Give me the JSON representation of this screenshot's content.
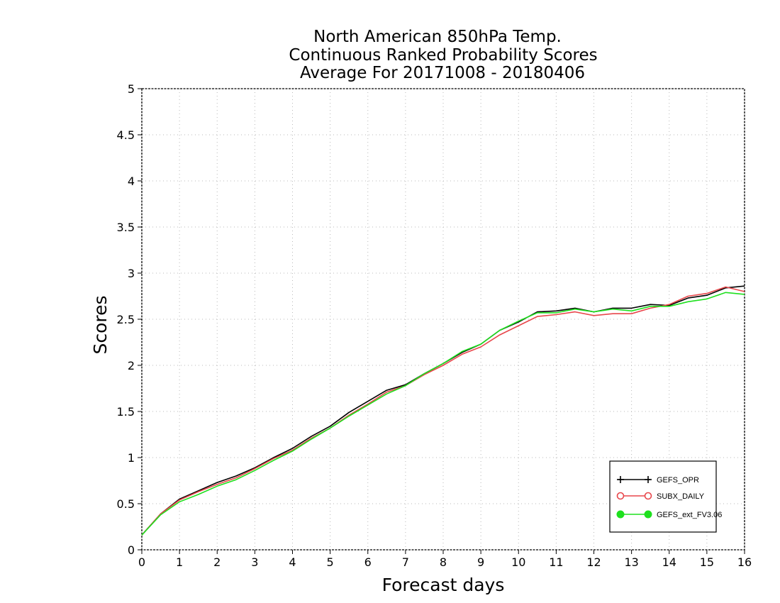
{
  "chart_data": {
    "type": "line",
    "title": [
      "North American 850hPa Temp.",
      "Continuous Ranked Probability Scores",
      "Average For 20171008 - 20180406"
    ],
    "xlabel": "Forecast days",
    "ylabel": "Scores",
    "xlim": [
      0,
      16
    ],
    "ylim": [
      0,
      5
    ],
    "x_ticks": [
      "0",
      "1",
      "2",
      "3",
      "4",
      "5",
      "6",
      "7",
      "8",
      "9",
      "10",
      "11",
      "12",
      "13",
      "14",
      "15",
      "16"
    ],
    "y_ticks": [
      "0",
      "0.5",
      "1",
      "1.5",
      "2",
      "2.5",
      "3",
      "3.5",
      "4",
      "4.5",
      "5"
    ],
    "grid": true,
    "legend_position": "bottom-right",
    "x": [
      0,
      0.5,
      1,
      1.5,
      2,
      2.5,
      3,
      3.5,
      4,
      4.5,
      5,
      5.5,
      6,
      6.5,
      7,
      7.5,
      8,
      8.5,
      9,
      9.5,
      10,
      10.5,
      11,
      11.5,
      12,
      12.5,
      13,
      13.5,
      14,
      14.5,
      15,
      15.5,
      16
    ],
    "series": [
      {
        "name": "GEFS_OPR",
        "color": "#000000",
        "marker": "plus",
        "values": [
          0.16,
          0.39,
          0.55,
          0.64,
          0.73,
          0.8,
          0.89,
          1.0,
          1.1,
          1.23,
          1.34,
          1.49,
          1.61,
          1.73,
          1.79,
          1.91,
          2.02,
          2.14,
          2.23,
          2.38,
          2.47,
          2.58,
          2.59,
          2.62,
          2.58,
          2.62,
          2.62,
          2.66,
          2.65,
          2.73,
          2.76,
          2.84,
          2.86
        ]
      },
      {
        "name": "SUBX_DAILY",
        "color": "#e8474b",
        "marker": "open-circle",
        "values": [
          0.16,
          0.39,
          0.54,
          0.63,
          0.71,
          0.78,
          0.88,
          0.99,
          1.08,
          1.21,
          1.32,
          1.46,
          1.58,
          1.71,
          1.78,
          1.9,
          2.0,
          2.12,
          2.2,
          2.33,
          2.43,
          2.53,
          2.55,
          2.58,
          2.54,
          2.56,
          2.56,
          2.62,
          2.66,
          2.75,
          2.78,
          2.85,
          2.8
        ]
      },
      {
        "name": "GEFS_ext_FV3.06",
        "color": "#1ee01e",
        "marker": "filled-circle",
        "values": [
          0.16,
          0.38,
          0.52,
          0.6,
          0.69,
          0.76,
          0.86,
          0.97,
          1.07,
          1.2,
          1.32,
          1.45,
          1.57,
          1.69,
          1.78,
          1.91,
          2.02,
          2.15,
          2.23,
          2.38,
          2.48,
          2.57,
          2.57,
          2.61,
          2.58,
          2.61,
          2.59,
          2.64,
          2.64,
          2.69,
          2.72,
          2.79,
          2.77
        ]
      }
    ]
  }
}
